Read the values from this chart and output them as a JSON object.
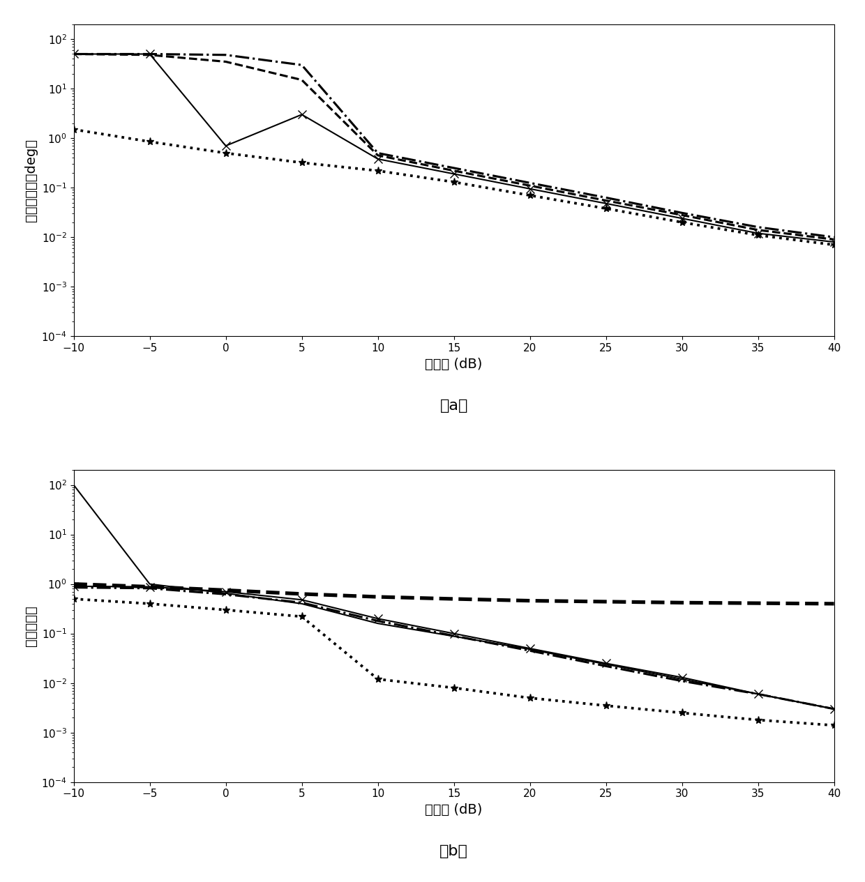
{
  "snr": [
    -10,
    -5,
    0,
    5,
    10,
    15,
    20,
    25,
    30,
    35,
    40
  ],
  "subplot_a": {
    "line_solid_x": [
      50,
      50,
      0.7,
      3.0,
      0.38,
      0.19,
      0.095,
      0.048,
      0.024,
      0.012,
      0.008
    ],
    "line_dashdot": [
      50,
      50,
      48,
      30,
      0.5,
      0.25,
      0.125,
      0.063,
      0.031,
      0.016,
      0.01
    ],
    "line_dashed": [
      50,
      48,
      35,
      15,
      0.45,
      0.22,
      0.11,
      0.055,
      0.028,
      0.014,
      0.009
    ],
    "line_dotted_star": [
      1.5,
      0.85,
      0.5,
      0.32,
      0.22,
      0.13,
      0.07,
      0.038,
      0.02,
      0.011,
      0.007
    ],
    "ylabel": "均方根误差（deg）",
    "xlabel": "信噪比 (dB)",
    "caption": "（a）",
    "ylim": [
      0.0001,
      200
    ]
  },
  "subplot_b": {
    "line_solid_sharp": [
      100,
      1.0,
      0.65,
      0.4,
      0.16,
      0.088,
      0.048,
      0.024,
      0.012,
      0.006,
      0.003
    ],
    "line_solid_x": [
      0.9,
      0.88,
      0.7,
      0.48,
      0.2,
      0.1,
      0.05,
      0.025,
      0.013,
      0.006,
      0.003
    ],
    "line_dashdot": [
      0.85,
      0.82,
      0.62,
      0.42,
      0.18,
      0.09,
      0.045,
      0.022,
      0.011,
      0.006,
      0.003
    ],
    "line_dotted_star": [
      0.5,
      0.4,
      0.3,
      0.22,
      0.012,
      0.008,
      0.005,
      0.0035,
      0.0025,
      0.0018,
      0.0014
    ],
    "line_dashed_flat": [
      1.0,
      0.88,
      0.75,
      0.63,
      0.55,
      0.5,
      0.46,
      0.44,
      0.42,
      0.41,
      0.4
    ],
    "ylabel": "均方根误差",
    "xlabel": "信噪比 (dB)",
    "caption": "（b）",
    "ylim": [
      0.0001,
      200
    ]
  },
  "lw": 1.5,
  "color": "#000000",
  "bg": "#ffffff",
  "fs_axis": 14,
  "fs_tick": 11,
  "fs_caption": 16
}
